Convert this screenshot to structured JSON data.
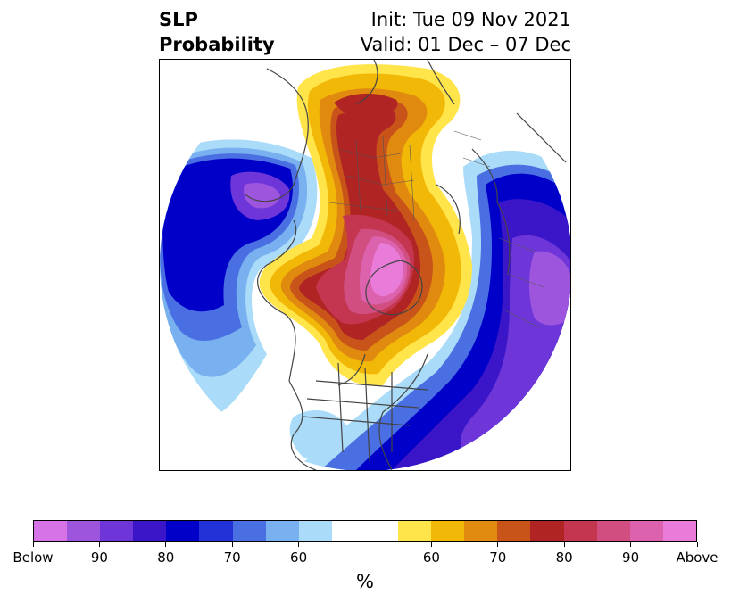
{
  "title": {
    "left_line1": "SLP",
    "left_line2": "Probability",
    "right_line1": "Init: Tue 09 Nov 2021",
    "right_line2": "Valid: 01 Dec – 07 Dec"
  },
  "colorbar": {
    "colors": [
      "#d673e6",
      "#9e55de",
      "#6e36d8",
      "#3a16c8",
      "#0000c8",
      "#2232d6",
      "#4a6fe2",
      "#78b0f0",
      "#aadbf8",
      "#ffffff",
      "#ffffff",
      "#ffe44a",
      "#f2b808",
      "#e08a10",
      "#c8541a",
      "#b02424",
      "#c43650",
      "#d04e80",
      "#dc62ae",
      "#e87cd8"
    ],
    "tick_labels": [
      "Below",
      "90",
      "80",
      "70",
      "60",
      "60",
      "70",
      "80",
      "90",
      "Above"
    ],
    "unit": "%"
  }
}
